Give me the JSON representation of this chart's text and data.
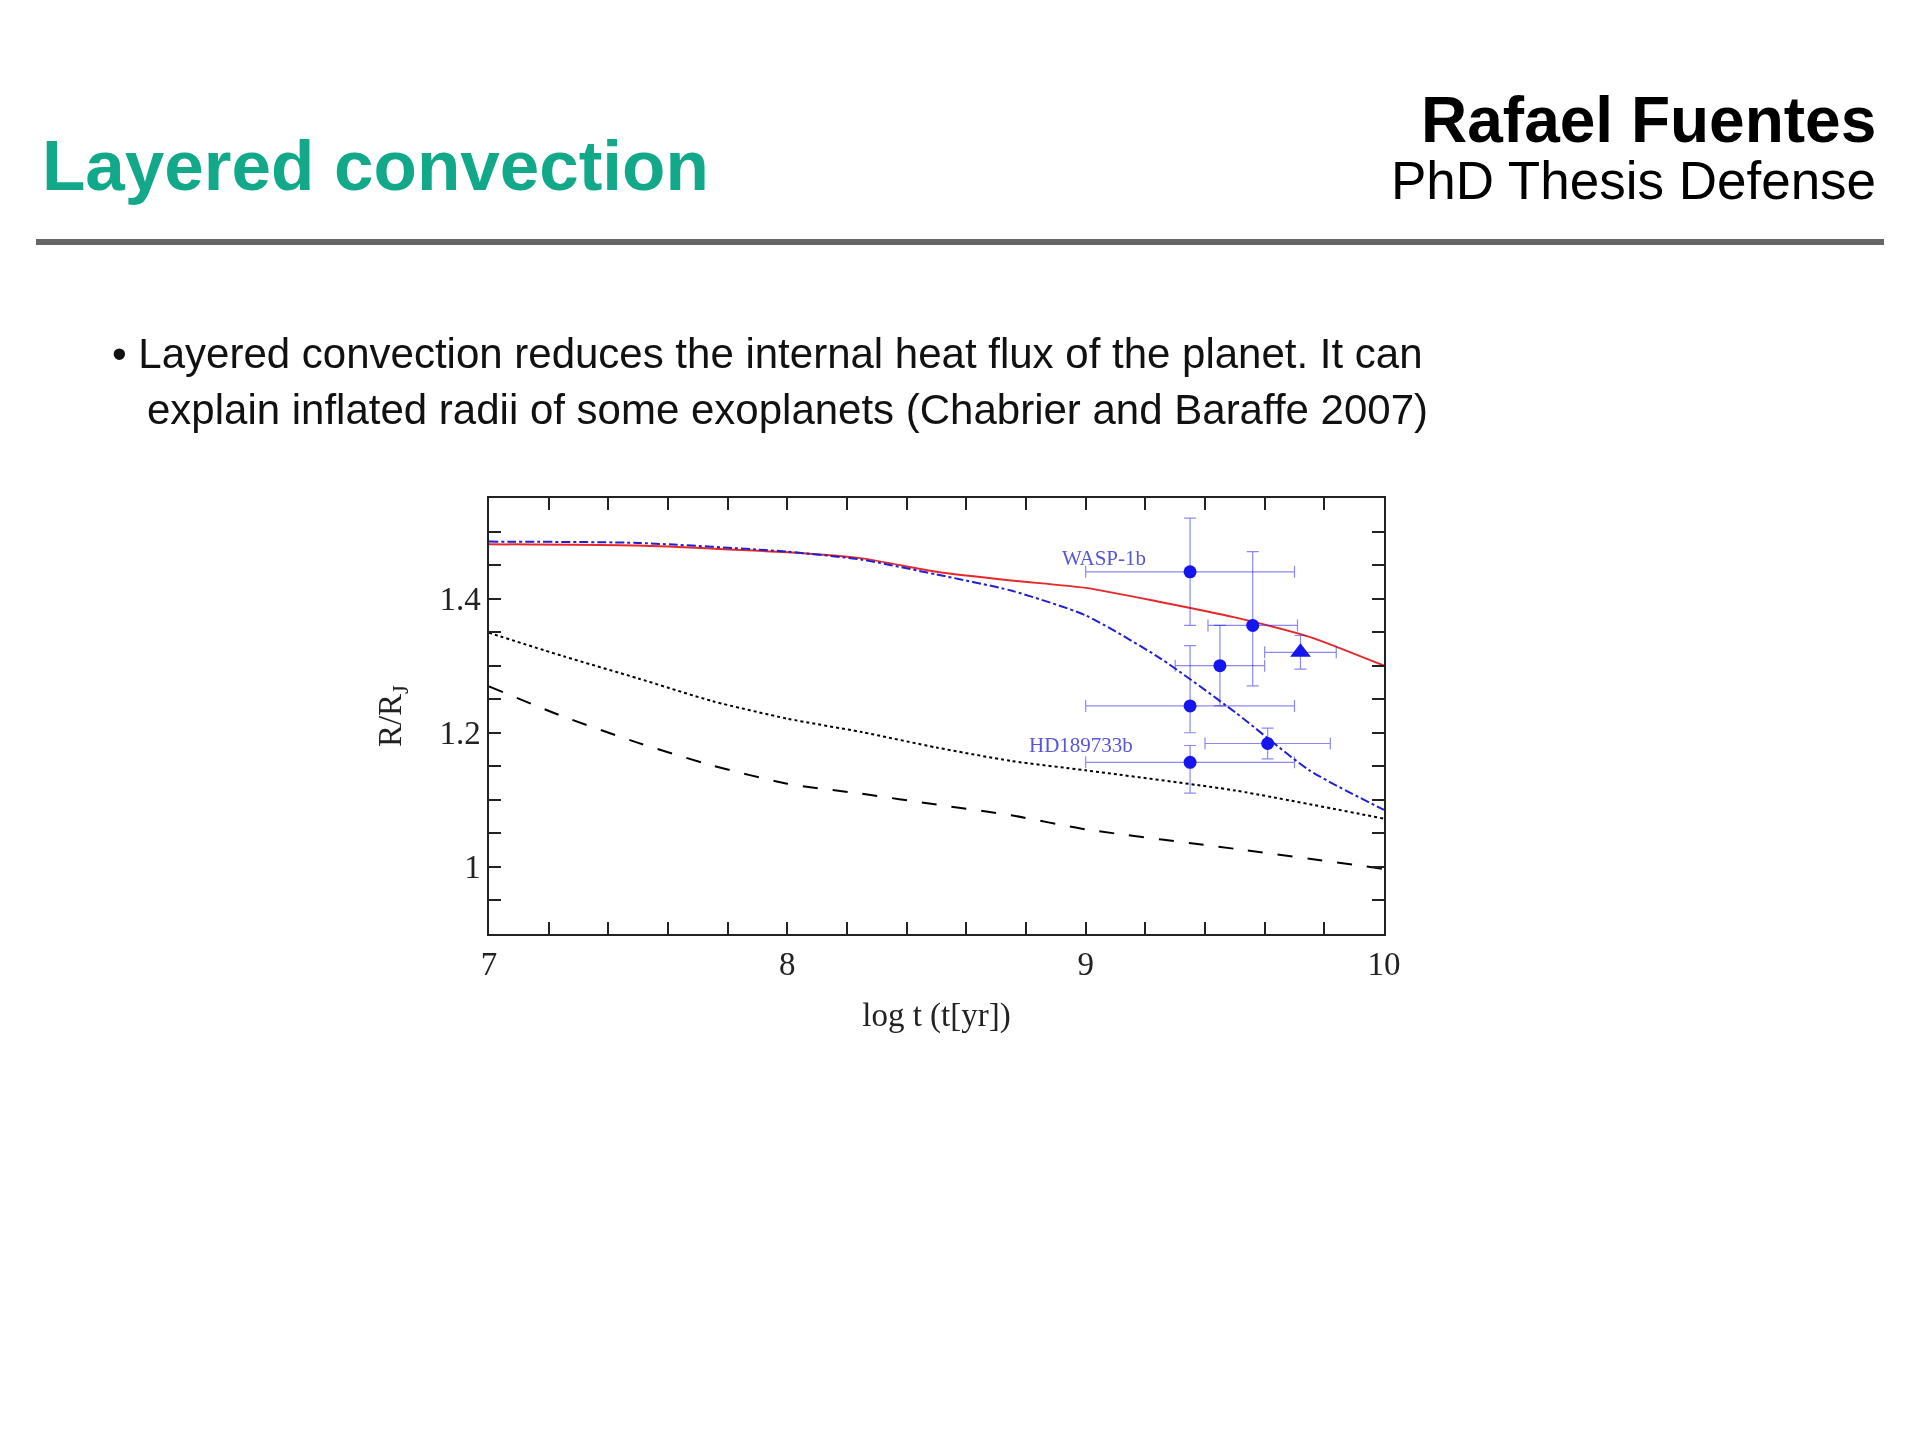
{
  "chart_data": {
    "type": "line",
    "title": "Layered convection",
    "subtitle": "• Layered convection reduces the internal heat flux of the planet. It can explain inflated radii of some exoplanets (Chabrier and Baraffe 2007)",
    "annotations": [
      "Rafael Fuentes",
      "PhD Thesis Defense",
      "WASP-1b",
      "HD189733b"
    ],
    "xlabel": "log t (t[yr])",
    "ylabel": "R/R$_{J}$",
    "xlim": [
      7,
      10
    ],
    "ylim": [
      0.9,
      1.55
    ],
    "xticks": [
      7,
      {
        "value": 7.2,
        "label": null
      },
      {
        "value": 7.4,
        "label": null
      },
      {
        "value": 7.6,
        "label": null
      },
      {
        "value": 7.8,
        "label": null
      },
      8,
      {
        "value": 8.2,
        "label": null
      },
      {
        "value": 8.4,
        "label": null
      },
      {
        "value": 8.6,
        "label": null
      },
      {
        "value": 8.8,
        "label": null
      },
      9,
      {
        "value": 9.2,
        "label": null
      },
      {
        "value": 9.4,
        "label": null
      },
      {
        "value": 9.6,
        "label": null
      },
      {
        "value": 9.8,
        "label": null
      },
      10
    ],
    "yticks": [
      {
        "value": 0.95,
        "label": null
      },
      1,
      {
        "value": 1.05,
        "label": null
      },
      {
        "value": 1.1,
        "label": null
      },
      {
        "value": 1.15,
        "label": null
      },
      1.2,
      {
        "value": 1.25,
        "label": null
      },
      {
        "value": 1.3,
        "label": null
      },
      {
        "value": 1.35,
        "label": null
      },
      1.4,
      {
        "value": 1.45,
        "label": null
      },
      {
        "value": 1.5,
        "label": null
      }
    ],
    "marker": "none",
    "series": [
      {
        "color": "#e8272a",
        "line_style": "solid",
        "x": [
          7,
          7.5,
          8,
          8.25,
          8.5,
          8.75,
          9,
          9.25,
          9.5,
          9.75,
          10
        ],
        "values": [
          1.481,
          1.479,
          1.469,
          1.46,
          1.44,
          1.427,
          1.416,
          1.395,
          1.372,
          1.343,
          1.3
        ]
      },
      {
        "color": "#2020d0",
        "line_style": "dashdot",
        "x": [
          7,
          7.5,
          8,
          8.25,
          8.5,
          8.75,
          9,
          9.25,
          9.5,
          9.75,
          10
        ],
        "values": [
          1.485,
          1.483,
          1.47,
          1.458,
          1.436,
          1.412,
          1.375,
          1.311,
          1.231,
          1.144,
          1.085
        ]
      },
      {
        "color": "#000000",
        "line_style": "dotted",
        "x": [
          7,
          7.25,
          7.5,
          7.75,
          8,
          8.25,
          8.5,
          8.75,
          9,
          9.5,
          10
        ],
        "values": [
          1.349,
          1.314,
          1.281,
          1.247,
          1.221,
          1.201,
          1.178,
          1.158,
          1.144,
          1.114,
          1.072
        ]
      },
      {
        "color": "#000000",
        "line_style": "dashed",
        "x": [
          7,
          7.25,
          7.5,
          7.75,
          8,
          8.25,
          8.5,
          8.75,
          9,
          9.5,
          10
        ],
        "values": [
          1.269,
          1.224,
          1.185,
          1.151,
          1.124,
          1.109,
          1.093,
          1.077,
          1.056,
          1.027,
          0.997
        ]
      },
      {
        "type": "scatter",
        "marker": "circle",
        "color": "#1515ee",
        "x": [
          9.35,
          9.56,
          9.45,
          9.35,
          9.35,
          9.61
        ],
        "values": [
          1.44,
          1.36,
          1.3,
          1.24,
          1.156,
          1.184
        ],
        "errors": [
          0.08,
          [
            1.27,
            1.47
          ],
          0.06,
          [
            1.2,
            1.33
          ],
          [
            1.11,
            1.181
          ],
          0.023
        ],
        "xerrors": [
          0.35,
          0.15,
          0.15,
          0.35,
          0.35,
          0.21
        ]
      },
      {
        "type": "scatter",
        "marker": "triangle",
        "color": "#1515ee",
        "x": [
          9.72
        ],
        "values": [
          1.32
        ],
        "errors": [
          0.025
        ],
        "xerrors": [
          0.12
        ]
      }
    ]
  }
}
